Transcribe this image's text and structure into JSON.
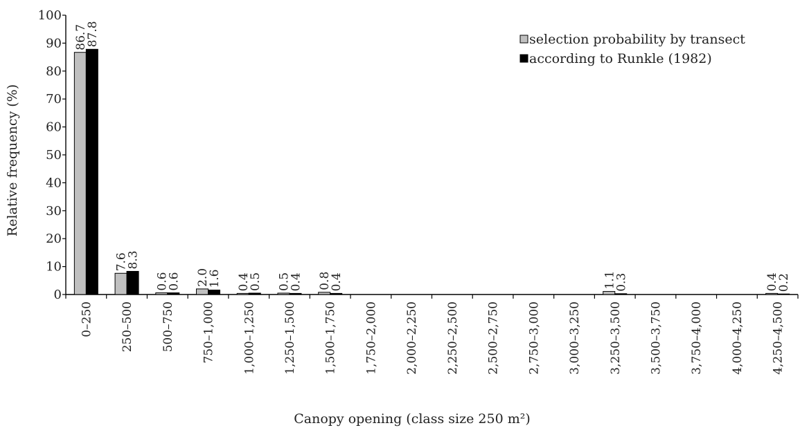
{
  "chart_data": {
    "type": "bar",
    "title": "",
    "xlabel": "Canopy opening (class size 250 m²)",
    "ylabel": "Relative frequency (%)",
    "ylim": [
      0,
      100
    ],
    "yticks": [
      0,
      10,
      20,
      30,
      40,
      50,
      60,
      70,
      80,
      90,
      100
    ],
    "grid": false,
    "legend_position": "top-right",
    "categories": [
      "0–250",
      "250–500",
      "500–750",
      "750–1,000",
      "1,000–1,250",
      "1,250–1,500",
      "1,500–1,750",
      "1,750–2,000",
      "2,000–2,250",
      "2,250–2,500",
      "2,500–2,750",
      "2,750–3,000",
      "3,000–3,250",
      "3,250–3,500",
      "3,500–3,750",
      "3,750–4,000",
      "4,000–4,250",
      "4,250–4,500"
    ],
    "series": [
      {
        "name": "selection probability by transect",
        "color": "#c0c0c0",
        "values": [
          86.7,
          7.6,
          0.6,
          2.0,
          0.4,
          0.5,
          0.8,
          0,
          0,
          0,
          0,
          0,
          0,
          1.1,
          0,
          0,
          0,
          0.4
        ],
        "labels": [
          "86.7",
          "7.6",
          "0.6",
          "2.0",
          "0.4",
          "0.5",
          "0.8",
          "",
          "",
          "",
          "",
          "",
          "",
          "1.1",
          "",
          "",
          "",
          "0.4"
        ]
      },
      {
        "name": "according to Runkle (1982)",
        "color": "#000000",
        "values": [
          87.8,
          8.3,
          0.6,
          1.6,
          0.5,
          0.4,
          0.4,
          0,
          0,
          0,
          0,
          0,
          0,
          0.3,
          0,
          0,
          0,
          0.2
        ],
        "labels": [
          "87.8",
          "8.3",
          "0.6",
          "1.6",
          "0.5",
          "0.4",
          "0.4",
          "",
          "",
          "",
          "",
          "",
          "",
          "0.3",
          "",
          "",
          "",
          "0.2"
        ]
      }
    ]
  }
}
